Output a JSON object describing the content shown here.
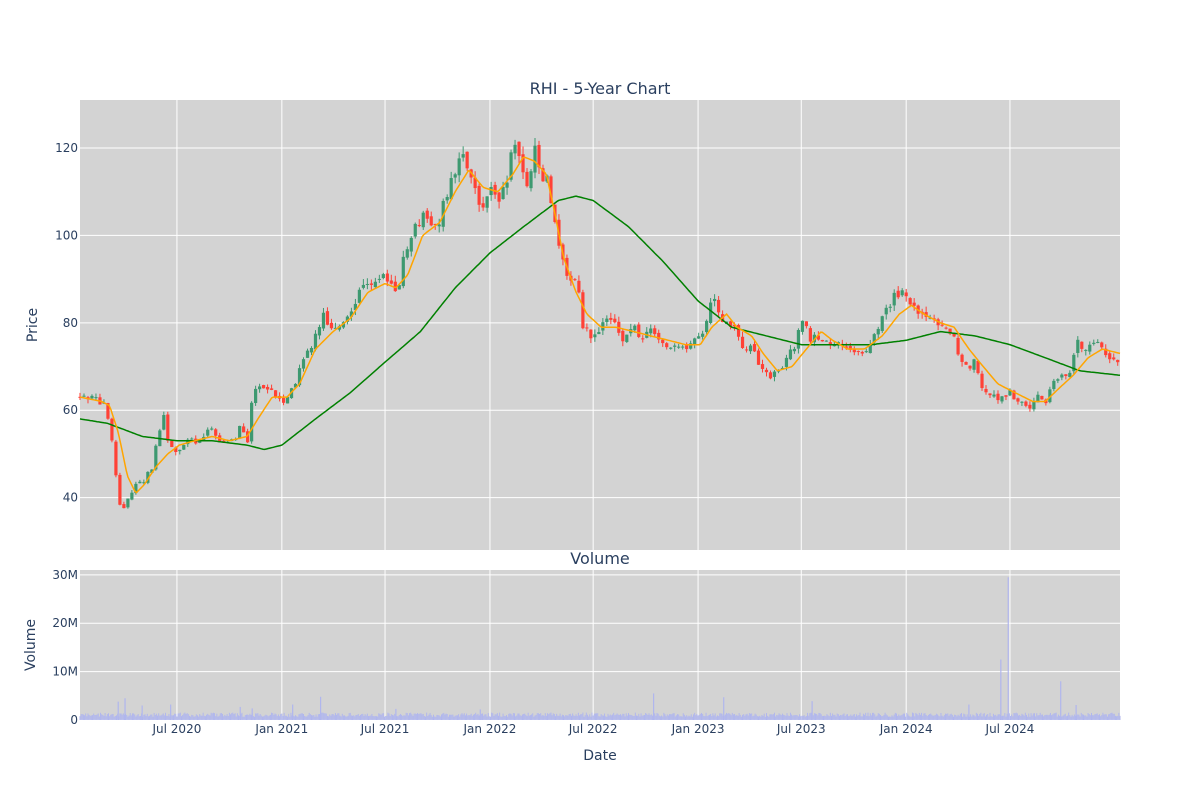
{
  "chart_data": [
    {
      "type": "candlestick",
      "title": "RHI - 5-Year Chart",
      "xlabel": "",
      "ylabel": "Price",
      "ylim": [
        28,
        131
      ],
      "yticks": [
        40,
        60,
        80,
        100,
        120
      ],
      "xticks": [
        "Jul 2020",
        "Jan 2021",
        "Jul 2021",
        "Jan 2022",
        "Jul 2022",
        "Jan 2023",
        "Jul 2023",
        "Jan 2024",
        "Jul 2024"
      ],
      "xlim": [
        "2020-01-13",
        "2025-01-10"
      ],
      "grid": true,
      "legend": "none",
      "colors": {
        "up": "#3d9970",
        "down": "#ff4136",
        "ma_short": "#ffa500",
        "ma_long": "#008000",
        "panel_bg": "#d3d3d3"
      },
      "price_anchors": [
        [
          "2020-01-13",
          63
        ],
        [
          "2020-02-03",
          63
        ],
        [
          "2020-02-24",
          61
        ],
        [
          "2020-03-06",
          56
        ],
        [
          "2020-03-16",
          45
        ],
        [
          "2020-03-25",
          36
        ],
        [
          "2020-04-06",
          40
        ],
        [
          "2020-04-20",
          43
        ],
        [
          "2020-05-04",
          44
        ],
        [
          "2020-05-18",
          47
        ],
        [
          "2020-05-28",
          53
        ],
        [
          "2020-06-08",
          59
        ],
        [
          "2020-06-15",
          53
        ],
        [
          "2020-07-01",
          50
        ],
        [
          "2020-07-20",
          53
        ],
        [
          "2020-08-10",
          53
        ],
        [
          "2020-09-01",
          56
        ],
        [
          "2020-09-20",
          52
        ],
        [
          "2020-10-10",
          53
        ],
        [
          "2020-10-22",
          58
        ],
        [
          "2020-11-01",
          52
        ],
        [
          "2020-11-09",
          62
        ],
        [
          "2020-11-20",
          66
        ],
        [
          "2020-12-15",
          64
        ],
        [
          "2021-01-01",
          62
        ],
        [
          "2021-01-20",
          65
        ],
        [
          "2021-02-10",
          72
        ],
        [
          "2021-03-01",
          77
        ],
        [
          "2021-03-15",
          82
        ],
        [
          "2021-04-01",
          78
        ],
        [
          "2021-04-20",
          80
        ],
        [
          "2021-05-05",
          84
        ],
        [
          "2021-05-20",
          88
        ],
        [
          "2021-06-10",
          90
        ],
        [
          "2021-06-28",
          91
        ],
        [
          "2021-07-10",
          88
        ],
        [
          "2021-07-25",
          88
        ],
        [
          "2021-08-02",
          95
        ],
        [
          "2021-08-20",
          101
        ],
        [
          "2021-09-05",
          104
        ],
        [
          "2021-09-20",
          103
        ],
        [
          "2021-10-01",
          102
        ],
        [
          "2021-10-12",
          107
        ],
        [
          "2021-10-28",
          113
        ],
        [
          "2021-11-10",
          118
        ],
        [
          "2021-11-25",
          116
        ],
        [
          "2021-12-05",
          110
        ],
        [
          "2021-12-20",
          107
        ],
        [
          "2022-01-05",
          112
        ],
        [
          "2022-01-18",
          108
        ],
        [
          "2022-02-01",
          113
        ],
        [
          "2022-02-12",
          123
        ],
        [
          "2022-02-28",
          115
        ],
        [
          "2022-03-10",
          110
        ],
        [
          "2022-03-22",
          120
        ],
        [
          "2022-04-01",
          113
        ],
        [
          "2022-04-12",
          114
        ],
        [
          "2022-04-22",
          104
        ],
        [
          "2022-05-05",
          96
        ],
        [
          "2022-05-20",
          88
        ],
        [
          "2022-06-01",
          91
        ],
        [
          "2022-06-12",
          80
        ],
        [
          "2022-06-25",
          77
        ],
        [
          "2022-07-10",
          78
        ],
        [
          "2022-07-25",
          81
        ],
        [
          "2022-08-10",
          79
        ],
        [
          "2022-08-25",
          76
        ],
        [
          "2022-09-10",
          80
        ],
        [
          "2022-09-28",
          75
        ],
        [
          "2022-10-05",
          79
        ],
        [
          "2022-10-20",
          77
        ],
        [
          "2022-11-05",
          75
        ],
        [
          "2022-11-20",
          74
        ],
        [
          "2022-12-10",
          74
        ],
        [
          "2023-01-01",
          76
        ],
        [
          "2023-01-15",
          80
        ],
        [
          "2023-01-28",
          87
        ],
        [
          "2023-02-08",
          82
        ],
        [
          "2023-02-20",
          80
        ],
        [
          "2023-03-05",
          79
        ],
        [
          "2023-03-20",
          75
        ],
        [
          "2023-04-05",
          74
        ],
        [
          "2023-04-20",
          70
        ],
        [
          "2023-05-05",
          68
        ],
        [
          "2023-05-20",
          68
        ],
        [
          "2023-06-05",
          72
        ],
        [
          "2023-06-20",
          75
        ],
        [
          "2023-07-05",
          82
        ],
        [
          "2023-07-15",
          76
        ],
        [
          "2023-08-01",
          77
        ],
        [
          "2023-08-20",
          74
        ],
        [
          "2023-09-05",
          75
        ],
        [
          "2023-09-25",
          73
        ],
        [
          "2023-10-10",
          74
        ],
        [
          "2023-10-25",
          73
        ],
        [
          "2023-11-05",
          78
        ],
        [
          "2023-11-20",
          81
        ],
        [
          "2023-12-05",
          85
        ],
        [
          "2023-12-20",
          87
        ],
        [
          "2024-01-05",
          85
        ],
        [
          "2024-01-20",
          82
        ],
        [
          "2024-02-05",
          81
        ],
        [
          "2024-02-20",
          80
        ],
        [
          "2024-03-05",
          80
        ],
        [
          "2024-03-20",
          78
        ],
        [
          "2024-04-05",
          72
        ],
        [
          "2024-04-20",
          70
        ],
        [
          "2024-05-01",
          71
        ],
        [
          "2024-05-15",
          65
        ],
        [
          "2024-06-01",
          63
        ],
        [
          "2024-06-15",
          63
        ],
        [
          "2024-07-01",
          64
        ],
        [
          "2024-07-15",
          62
        ],
        [
          "2024-08-01",
          60
        ],
        [
          "2024-08-15",
          63
        ],
        [
          "2024-09-01",
          62
        ],
        [
          "2024-09-15",
          67
        ],
        [
          "2024-10-01",
          68
        ],
        [
          "2024-10-15",
          69
        ],
        [
          "2024-10-25",
          76
        ],
        [
          "2024-11-10",
          74
        ],
        [
          "2024-11-25",
          75
        ],
        [
          "2024-12-05",
          77
        ],
        [
          "2024-12-15",
          72
        ],
        [
          "2025-01-10",
          71
        ]
      ],
      "ma_short_anchors": [
        [
          "2020-01-13",
          63
        ],
        [
          "2020-02-20",
          62
        ],
        [
          "2020-03-05",
          61
        ],
        [
          "2020-03-20",
          55
        ],
        [
          "2020-04-05",
          45
        ],
        [
          "2020-04-20",
          41
        ],
        [
          "2020-05-05",
          43
        ],
        [
          "2020-05-25",
          47
        ],
        [
          "2020-06-15",
          50
        ],
        [
          "2020-07-05",
          52
        ],
        [
          "2020-08-01",
          53
        ],
        [
          "2020-09-01",
          54
        ],
        [
          "2020-10-01",
          53
        ],
        [
          "2020-11-01",
          54
        ],
        [
          "2020-11-20",
          58
        ],
        [
          "2020-12-15",
          63
        ],
        [
          "2021-01-10",
          63
        ],
        [
          "2021-02-01",
          66
        ],
        [
          "2021-03-01",
          74
        ],
        [
          "2021-04-01",
          78
        ],
        [
          "2021-05-01",
          81
        ],
        [
          "2021-06-01",
          87
        ],
        [
          "2021-07-01",
          89
        ],
        [
          "2021-07-20",
          88
        ],
        [
          "2021-08-10",
          91
        ],
        [
          "2021-09-05",
          100
        ],
        [
          "2021-10-05",
          103
        ],
        [
          "2021-11-01",
          110
        ],
        [
          "2021-11-25",
          115
        ],
        [
          "2021-12-20",
          111
        ],
        [
          "2022-01-15",
          110
        ],
        [
          "2022-02-10",
          114
        ],
        [
          "2022-03-01",
          118
        ],
        [
          "2022-03-20",
          117
        ],
        [
          "2022-04-10",
          114
        ],
        [
          "2022-04-25",
          105
        ],
        [
          "2022-05-10",
          95
        ],
        [
          "2022-06-01",
          87
        ],
        [
          "2022-06-20",
          82
        ],
        [
          "2022-07-15",
          79
        ],
        [
          "2022-08-10",
          79
        ],
        [
          "2022-09-10",
          78
        ],
        [
          "2022-10-10",
          77
        ],
        [
          "2022-11-10",
          76
        ],
        [
          "2022-12-10",
          75
        ],
        [
          "2023-01-05",
          75
        ],
        [
          "2023-01-25",
          79
        ],
        [
          "2023-02-20",
          82
        ],
        [
          "2023-03-10",
          79
        ],
        [
          "2023-04-05",
          77
        ],
        [
          "2023-04-25",
          73
        ],
        [
          "2023-05-20",
          69
        ],
        [
          "2023-06-15",
          70
        ],
        [
          "2023-07-10",
          74
        ],
        [
          "2023-08-05",
          78
        ],
        [
          "2023-08-25",
          76
        ],
        [
          "2023-09-20",
          74
        ],
        [
          "2023-10-20",
          74
        ],
        [
          "2023-11-20",
          77
        ],
        [
          "2023-12-20",
          82
        ],
        [
          "2024-01-10",
          84
        ],
        [
          "2024-02-01",
          82
        ],
        [
          "2024-03-01",
          80
        ],
        [
          "2024-03-25",
          79
        ],
        [
          "2024-04-20",
          74
        ],
        [
          "2024-05-15",
          70
        ],
        [
          "2024-06-10",
          66
        ],
        [
          "2024-07-10",
          64
        ],
        [
          "2024-08-10",
          62
        ],
        [
          "2024-09-01",
          62
        ],
        [
          "2024-09-25",
          65
        ],
        [
          "2024-10-20",
          68
        ],
        [
          "2024-11-15",
          72
        ],
        [
          "2024-12-10",
          74
        ],
        [
          "2025-01-10",
          73
        ]
      ],
      "ma_long_anchors": [
        [
          "2020-01-13",
          58
        ],
        [
          "2020-03-01",
          57
        ],
        [
          "2020-05-01",
          54
        ],
        [
          "2020-07-01",
          53
        ],
        [
          "2020-09-01",
          53
        ],
        [
          "2020-11-01",
          52
        ],
        [
          "2020-12-01",
          51
        ],
        [
          "2021-01-01",
          52
        ],
        [
          "2021-03-01",
          58
        ],
        [
          "2021-05-01",
          64
        ],
        [
          "2021-07-01",
          71
        ],
        [
          "2021-09-01",
          78
        ],
        [
          "2021-11-01",
          88
        ],
        [
          "2022-01-01",
          96
        ],
        [
          "2022-03-01",
          102
        ],
        [
          "2022-05-01",
          108
        ],
        [
          "2022-06-01",
          109
        ],
        [
          "2022-07-01",
          108
        ],
        [
          "2022-09-01",
          102
        ],
        [
          "2022-11-01",
          94
        ],
        [
          "2023-01-01",
          85
        ],
        [
          "2023-03-01",
          79
        ],
        [
          "2023-05-01",
          77
        ],
        [
          "2023-07-01",
          75
        ],
        [
          "2023-09-01",
          75
        ],
        [
          "2023-11-01",
          75
        ],
        [
          "2024-01-01",
          76
        ],
        [
          "2024-03-01",
          78
        ],
        [
          "2024-05-01",
          77
        ],
        [
          "2024-07-01",
          75
        ],
        [
          "2024-09-01",
          72
        ],
        [
          "2024-11-01",
          69
        ],
        [
          "2025-01-10",
          68
        ]
      ]
    },
    {
      "type": "bar",
      "title": "Volume",
      "xlabel": "Date",
      "ylabel": "Volume",
      "ylim": [
        0,
        31000000
      ],
      "yticks": [
        0,
        10000000,
        20000000,
        30000000
      ],
      "ytick_labels": [
        "0",
        "10M",
        "20M",
        "30M"
      ],
      "xticks": [
        "Jul 2020",
        "Jan 2021",
        "Jul 2021",
        "Jan 2022",
        "Jul 2022",
        "Jan 2023",
        "Jul 2023",
        "Jan 2024",
        "Jul 2024"
      ],
      "xlim": [
        "2020-01-13",
        "2025-01-10"
      ],
      "grid": true,
      "legend": "none",
      "colors": {
        "bar": "#b0b6ee",
        "panel_bg": "#d3d3d3"
      },
      "baseline_volume": 1100000,
      "spikes": [
        [
          "2020-03-20",
          3800000
        ],
        [
          "2020-04-01",
          4500000
        ],
        [
          "2020-05-01",
          3000000
        ],
        [
          "2020-06-20",
          3200000
        ],
        [
          "2020-10-20",
          2700000
        ],
        [
          "2020-11-10",
          2400000
        ],
        [
          "2021-01-20",
          3200000
        ],
        [
          "2021-03-10",
          4800000
        ],
        [
          "2021-07-20",
          2300000
        ],
        [
          "2021-12-15",
          2200000
        ],
        [
          "2022-10-15",
          5500000
        ],
        [
          "2023-02-15",
          4700000
        ],
        [
          "2023-07-20",
          3900000
        ],
        [
          "2024-04-20",
          3200000
        ],
        [
          "2024-06-15",
          12500000
        ],
        [
          "2024-06-28",
          29500000
        ],
        [
          "2024-09-28",
          8000000
        ],
        [
          "2024-10-25",
          3100000
        ]
      ]
    }
  ]
}
